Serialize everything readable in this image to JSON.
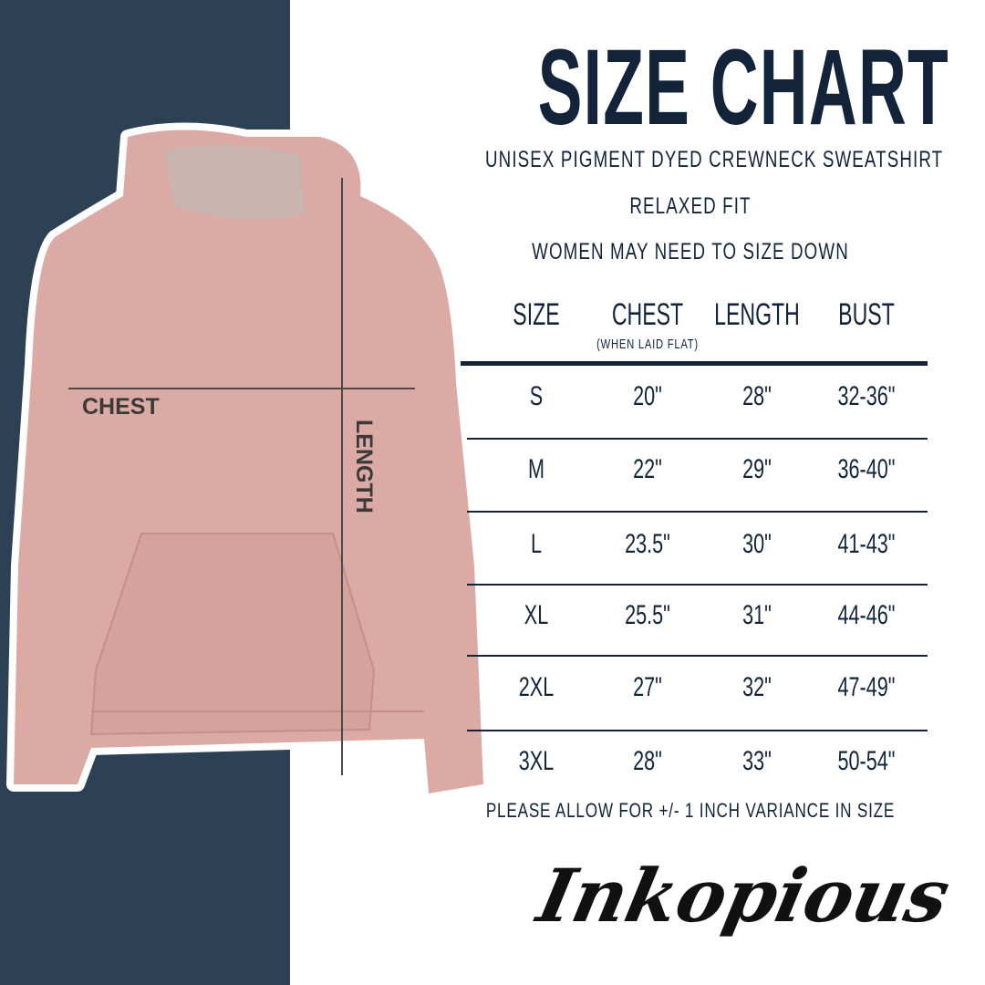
{
  "title": "SIZE CHART",
  "subtitle_lines": [
    "UNISEX PIGMENT DYED CREWNECK SWEATSHIRT",
    "RELAXED FIT",
    "WOMEN MAY NEED TO SIZE DOWN"
  ],
  "garment_labels": {
    "chest": "CHEST",
    "length": "LENGTH"
  },
  "table": {
    "headers": [
      "SIZE",
      "CHEST",
      "LENGTH",
      "BUST"
    ],
    "chest_note": "(WHEN LAID FLAT)",
    "rows": [
      [
        "S",
        "20\"",
        "28\"",
        "32-36\""
      ],
      [
        "M",
        "22\"",
        "29\"",
        "36-40\""
      ],
      [
        "L",
        "23.5\"",
        "30\"",
        "41-43\""
      ],
      [
        "XL",
        "25.5\"",
        "31\"",
        "44-46\""
      ],
      [
        "2XL",
        "27\"",
        "32\"",
        "47-49\""
      ],
      [
        "3XL",
        "28\"",
        "33\"",
        "50-54\""
      ]
    ]
  },
  "footnote": "PLEASE ALLOW FOR +/- 1 INCH VARIANCE IN SIZE",
  "brand": "Inkopious",
  "colors": {
    "navy": "#2d4154",
    "text": "#13243a",
    "hoodie": "#dcaaa4"
  }
}
